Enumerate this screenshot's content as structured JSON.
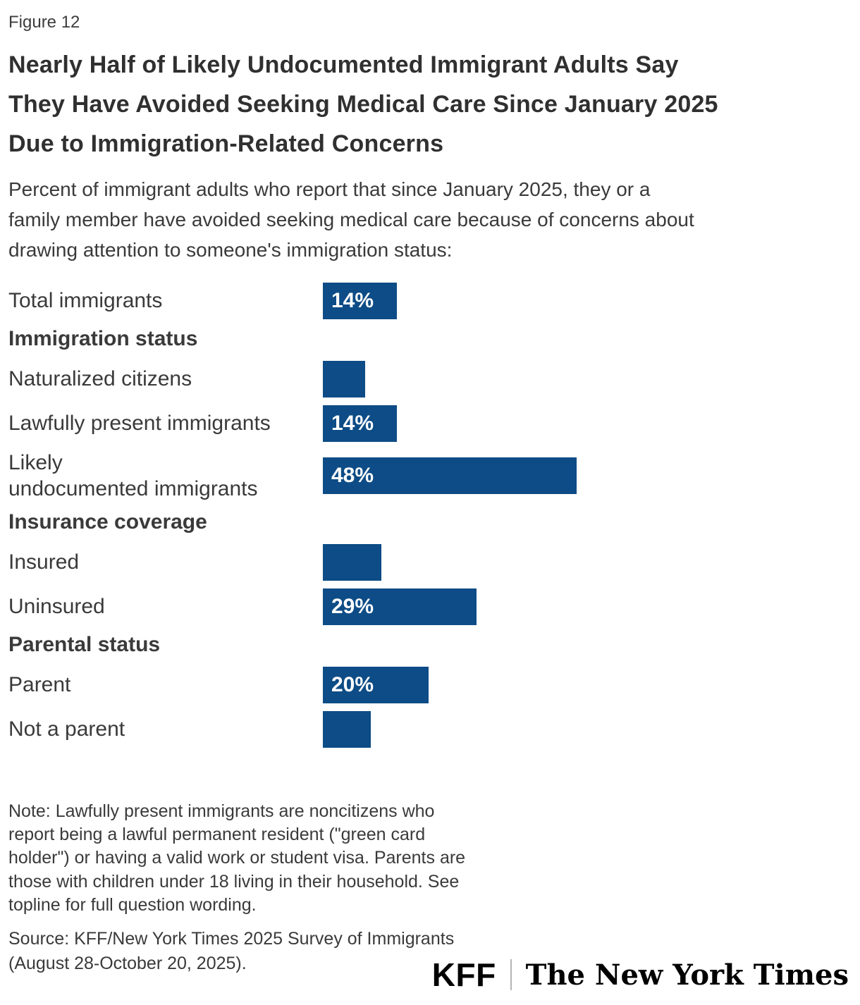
{
  "figure_label": "Figure 12",
  "title": "Nearly Half of Likely Undocumented Immigrant Adults Say\nThey Have Avoided Seeking Medical Care Since January 2025\nDue to Immigration-Related Concerns",
  "subtitle": "Percent of immigrant adults who report that since January 2025, they or a\nfamily member have avoided seeking medical care because of concerns about\ndrawing attention to someone's immigration status:",
  "chart_data": {
    "type": "bar",
    "orientation": "horizontal",
    "unit": "percent",
    "bar_color": "#0d4c86",
    "value_label_color": "#ffffff",
    "xlim": [
      0,
      100
    ],
    "rows": [
      {
        "kind": "bar",
        "label": "Total immigrants",
        "value": 14,
        "value_label": "14%"
      },
      {
        "kind": "section",
        "label": "Immigration status"
      },
      {
        "kind": "bar",
        "label": "Naturalized citizens",
        "value": 8,
        "value_label": ""
      },
      {
        "kind": "bar",
        "label": "Lawfully present immigrants",
        "value": 14,
        "value_label": "14%"
      },
      {
        "kind": "bar",
        "label": "Likely\nundocumented immigrants",
        "value": 48,
        "value_label": "48%"
      },
      {
        "kind": "section",
        "label": "Insurance coverage"
      },
      {
        "kind": "bar",
        "label": "Insured",
        "value": 11,
        "value_label": ""
      },
      {
        "kind": "bar",
        "label": "Uninsured",
        "value": 29,
        "value_label": "29%"
      },
      {
        "kind": "section",
        "label": "Parental status"
      },
      {
        "kind": "bar",
        "label": "Parent",
        "value": 20,
        "value_label": "20%"
      },
      {
        "kind": "bar",
        "label": "Not a parent",
        "value": 9,
        "value_label": ""
      }
    ]
  },
  "note": "Note: Lawfully present immigrants are noncitizens who\nreport being a lawful permanent resident (\"green card\nholder\") or having a valid work or student visa. Parents are\nthose with children under 18 living in their household. See\ntopline for full question wording.",
  "source": "Source: KFF/New York Times 2025 Survey of Immigrants\n(August 28-October 20, 2025).",
  "logos": {
    "kff": "KFF",
    "nyt": "The New York Times"
  }
}
